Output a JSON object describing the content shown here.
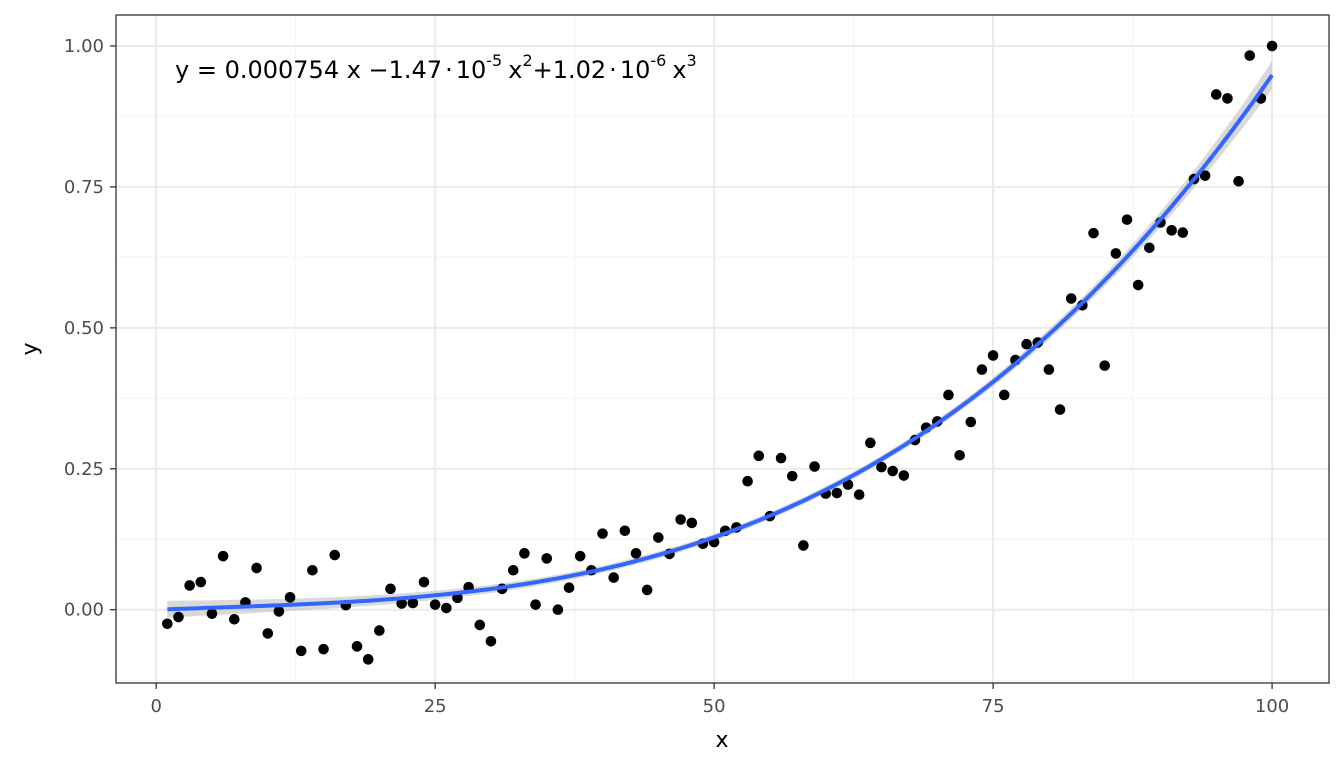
{
  "chart_data": {
    "type": "scatter",
    "title": "",
    "xlabel": "x",
    "ylabel": "y",
    "xlim": [
      -3.6,
      105.1
    ],
    "ylim": [
      -0.13,
      1.055
    ],
    "x_ticks": [
      0,
      25,
      50,
      75,
      100
    ],
    "x_tick_labels": [
      "0",
      "25",
      "50",
      "75",
      "100"
    ],
    "y_ticks": [
      0,
      0.25,
      0.5,
      0.75,
      1.0
    ],
    "y_tick_labels": [
      "0.00",
      "0.25",
      "0.50",
      "0.75",
      "1.00"
    ],
    "grid": true,
    "colors": {
      "points": "#000000",
      "fit_line": "#3366FF",
      "ribbon": "#bfbfbf",
      "grid_major": "#ebebeb",
      "grid_minor": "#f5f5f5",
      "panel_border": "#333333"
    },
    "equation": {
      "prefix": "y = 0.000754 x −1.47",
      "exp1": "-5",
      "mid": "x",
      "exp2": "2",
      "mid2": "+1.02",
      "exp3": "-6",
      "suffix": "x",
      "exp4": "3",
      "dot": "·",
      "ten": "10"
    },
    "fit": {
      "model": "cubic polynomial",
      "coefficients": {
        "x": 0.000754,
        "x2": -1.47e-05,
        "x3": 1.02e-06
      },
      "x_range": [
        1,
        100
      ],
      "ci_halfwidth_approx": [
        0.009,
        0.006,
        0.01,
        0.02,
        0.03
      ]
    },
    "points": {
      "x": [
        1,
        2,
        3,
        4,
        5,
        6,
        7,
        8,
        9,
        10,
        11,
        12,
        13,
        14,
        15,
        16,
        17,
        18,
        19,
        20,
        21,
        22,
        23,
        24,
        25,
        26,
        27,
        28,
        29,
        30,
        31,
        32,
        33,
        34,
        35,
        36,
        37,
        38,
        39,
        40,
        41,
        42,
        43,
        44,
        45,
        46,
        47,
        48,
        49,
        50,
        51,
        52,
        53,
        54,
        55,
        56,
        57,
        58,
        59,
        60,
        61,
        62,
        63,
        64,
        65,
        66,
        67,
        68,
        69,
        70,
        71,
        72,
        73,
        74,
        75,
        76,
        77,
        78,
        79,
        80,
        81,
        82,
        83,
        84,
        85,
        86,
        87,
        88,
        89,
        90,
        91,
        92,
        93,
        94,
        95,
        96,
        97,
        98,
        99,
        100
      ],
      "y": [
        -0.025,
        -0.013,
        0.043,
        0.049,
        -0.007,
        0.095,
        -0.017,
        0.013,
        0.074,
        -0.042,
        -0.003,
        0.022,
        -0.073,
        0.07,
        -0.07,
        0.097,
        0.008,
        -0.065,
        -0.088,
        -0.037,
        0.037,
        0.011,
        0.012,
        0.049,
        0.009,
        0.003,
        0.021,
        0.04,
        -0.027,
        -0.056,
        0.037,
        0.07,
        0.1,
        0.009,
        0.091,
        0.0,
        0.039,
        0.095,
        0.07,
        0.135,
        0.057,
        0.14,
        0.1,
        0.035,
        0.128,
        0.099,
        0.16,
        0.154,
        0.117,
        0.12,
        0.14,
        0.146,
        0.228,
        0.273,
        0.166,
        0.269,
        0.237,
        0.114,
        0.254,
        0.206,
        0.207,
        0.222,
        0.204,
        0.296,
        0.253,
        0.246,
        0.238,
        0.301,
        0.323,
        0.334,
        0.381,
        0.274,
        0.333,
        0.426,
        0.451,
        0.381,
        0.443,
        0.471,
        0.474,
        0.426,
        0.355,
        0.552,
        0.54,
        0.668,
        0.433,
        0.632,
        0.692,
        0.576,
        0.642,
        0.687,
        0.673,
        0.669,
        0.764,
        0.77,
        0.914,
        0.907,
        0.76,
        0.983,
        0.907,
        1.0
      ]
    }
  }
}
